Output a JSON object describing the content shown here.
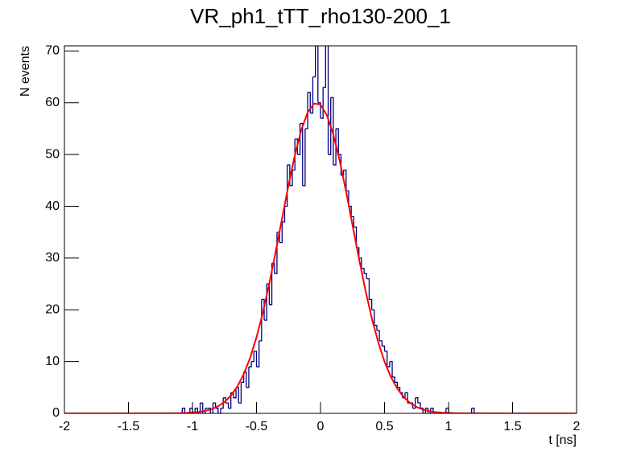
{
  "chart_data": {
    "type": "histogram",
    "title": "VR_ph1_tTT_rho130-200_1",
    "xlabel": "t [ns]",
    "ylabel": "N events",
    "color": "#000080",
    "bins": [
      -2,
      -1.98,
      -1.96,
      -1.94,
      -1.92,
      -1.9,
      -1.88,
      -1.86,
      -1.84,
      -1.82,
      -1.8,
      -1.78,
      -1.76,
      -1.74,
      -1.72,
      -1.7,
      -1.68,
      -1.66,
      -1.64,
      -1.62,
      -1.6,
      -1.58,
      -1.56,
      -1.54,
      -1.52,
      -1.5,
      -1.48,
      -1.46,
      -1.44,
      -1.42,
      -1.4,
      -1.38,
      -1.36,
      -1.34,
      -1.32,
      -1.3,
      -1.28,
      -1.26,
      -1.24,
      -1.22,
      -1.2,
      -1.18,
      -1.16,
      -1.14,
      -1.12,
      -1.1,
      -1.08,
      -1.06,
      -1.04,
      -1.02,
      -1,
      -0.98,
      -0.96,
      -0.94,
      -0.92,
      -0.9,
      -0.88,
      -0.86,
      -0.84,
      -0.82,
      -0.8,
      -0.78,
      -0.76,
      -0.74,
      -0.72,
      -0.7,
      -0.68,
      -0.66,
      -0.64,
      -0.62,
      -0.6,
      -0.58,
      -0.56,
      -0.54,
      -0.52,
      -0.5,
      -0.48,
      -0.46,
      -0.44,
      -0.42,
      -0.4,
      -0.38,
      -0.36,
      -0.34,
      -0.32,
      -0.3,
      -0.28,
      -0.26,
      -0.24,
      -0.22,
      -0.2,
      -0.18,
      -0.16,
      -0.14,
      -0.12,
      -0.1,
      -0.08,
      -0.06,
      -0.04,
      -0.02,
      0,
      0.02,
      0.04,
      0.06,
      0.08,
      0.1,
      0.12,
      0.14,
      0.16,
      0.18,
      0.2,
      0.22,
      0.24,
      0.26,
      0.28,
      0.3,
      0.32,
      0.34,
      0.36,
      0.38,
      0.4,
      0.42,
      0.44,
      0.46,
      0.48,
      0.5,
      0.52,
      0.54,
      0.56,
      0.58,
      0.6,
      0.62,
      0.64,
      0.66,
      0.68,
      0.7,
      0.72,
      0.74,
      0.76,
      0.78,
      0.8,
      0.82,
      0.84,
      0.86,
      0.88,
      0.9,
      0.92,
      0.94,
      0.96,
      0.98,
      1,
      1.02,
      1.04,
      1.06,
      1.08,
      1.1,
      1.12,
      1.14,
      1.16,
      1.18,
      1.2,
      1.22,
      1.24,
      1.26,
      1.28,
      1.3,
      1.32,
      1.34,
      1.36,
      1.38,
      1.4,
      1.42,
      1.44,
      1.46,
      1.48,
      1.5,
      1.52,
      1.54,
      1.56,
      1.58,
      1.6,
      1.62,
      1.64,
      1.66,
      1.68,
      1.7,
      1.72,
      1.74,
      1.76,
      1.78,
      1.8,
      1.82,
      1.84,
      1.86,
      1.88,
      1.9,
      1.92,
      1.94,
      1.96,
      1.98,
      2
    ],
    "values": [
      0,
      0,
      0,
      0,
      0,
      0,
      0,
      0,
      0,
      0,
      0,
      0,
      0,
      0,
      0,
      0,
      0,
      0,
      0,
      0,
      0,
      0,
      0,
      0,
      0,
      0,
      0,
      0,
      0,
      0,
      0,
      0,
      0,
      0,
      0,
      0,
      0,
      0,
      0,
      0,
      0,
      0,
      0,
      0,
      0,
      0,
      1,
      0,
      0,
      1,
      0,
      1,
      0,
      2,
      0,
      1,
      1,
      0,
      2,
      1,
      0,
      1,
      3,
      2,
      1,
      4,
      3,
      5,
      2,
      6,
      8,
      5,
      9,
      10,
      12,
      9,
      14,
      22,
      18,
      25,
      21,
      29,
      27,
      35,
      33,
      37,
      40,
      48,
      44,
      47,
      53,
      50,
      56,
      44,
      55,
      62,
      58,
      65,
      71,
      60,
      57,
      63,
      72,
      50,
      61,
      48,
      55,
      50,
      46,
      47,
      43,
      40,
      38,
      36,
      32,
      30,
      28,
      27,
      26,
      22,
      20,
      17,
      16,
      14,
      13,
      12,
      9,
      10,
      7,
      6,
      5,
      4,
      3,
      4,
      2,
      2,
      1,
      3,
      2,
      1,
      0,
      1,
      0,
      1,
      0,
      0,
      0,
      0,
      0,
      1,
      0,
      0,
      0,
      0,
      0,
      0,
      0,
      0,
      0,
      1,
      0,
      0,
      0,
      0,
      0,
      0,
      0,
      0,
      0,
      0,
      0,
      0,
      0,
      0,
      0,
      0,
      0,
      0,
      0,
      0,
      0,
      0,
      0,
      0,
      0,
      0,
      0,
      0,
      0,
      0,
      0,
      0,
      0,
      0,
      0,
      0,
      0,
      0,
      0,
      0
    ],
    "fit": {
      "color": "#ff0000",
      "x": [
        -2,
        -1.2,
        -1.15,
        -1.1,
        -1.05,
        -1,
        -0.95,
        -0.9,
        -0.85,
        -0.8,
        -0.75,
        -0.7,
        -0.65,
        -0.6,
        -0.55,
        -0.5,
        -0.45,
        -0.4,
        -0.35,
        -0.3,
        -0.25,
        -0.2,
        -0.15,
        -0.1,
        -0.05,
        0,
        0.05,
        0.1,
        0.15,
        0.2,
        0.25,
        0.3,
        0.35,
        0.4,
        0.45,
        0.5,
        0.55,
        0.6,
        0.65,
        0.7,
        0.75,
        0.8,
        0.85,
        0.9,
        0.95,
        1,
        1.05,
        1.1,
        2
      ],
      "values": [
        0,
        0.01,
        0.02,
        0.04,
        0.08,
        0.15,
        0.27,
        0.48,
        0.82,
        1.37,
        2.2,
        3.43,
        5.17,
        7.56,
        10.7,
        14.67,
        19.48,
        25.06,
        31.23,
        37.69,
        44.07,
        49.9,
        54.74,
        58.15,
        59.85,
        59.66,
        57.6,
        53.87,
        48.8,
        42.82,
        36.39,
        29.96,
        23.89,
        18.45,
        13.81,
        10,
        7.02,
        4.78,
        3.14,
        2,
        1.24,
        0.74,
        0.43,
        0.24,
        0.13,
        0.07,
        0.03,
        0.01,
        0
      ]
    },
    "xlim": [
      -2,
      2
    ],
    "xticks": [
      -2,
      -1.5,
      -1,
      -0.5,
      0,
      0.5,
      1,
      1.5,
      2
    ],
    "ylim": [
      0,
      71
    ],
    "yticks": [
      0,
      10,
      20,
      30,
      40,
      50,
      60,
      70
    ]
  }
}
